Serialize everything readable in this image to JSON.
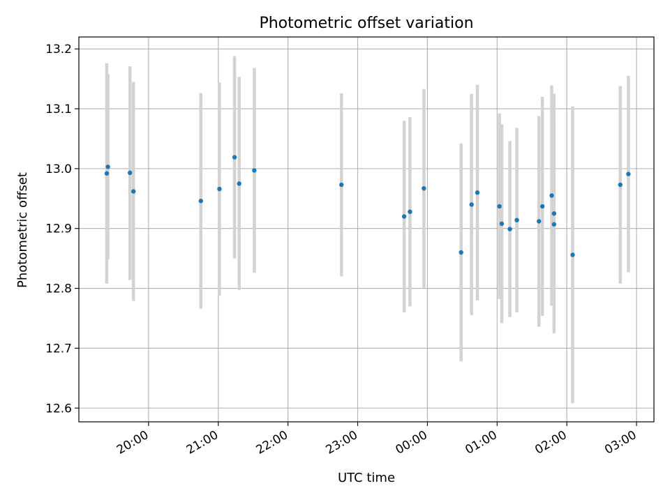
{
  "chart_data": {
    "type": "scatter",
    "title": "Photometric offset variation",
    "xlabel": "UTC time",
    "ylabel": "Photometric offset",
    "grid": true,
    "legend": "none",
    "colors": {
      "points": "#1f77b4",
      "errorbars": "#d3d3d3",
      "grid": "#b0b0b0"
    },
    "xlim": [
      "2000-01-01T19:00",
      "2000-01-02T03:15"
    ],
    "ylim": [
      12.577,
      13.22
    ],
    "x_ticks": [
      {
        "t": "2000-01-01T20:00",
        "label": "20:00"
      },
      {
        "t": "2000-01-01T21:00",
        "label": "21:00"
      },
      {
        "t": "2000-01-01T22:00",
        "label": "22:00"
      },
      {
        "t": "2000-01-01T23:00",
        "label": "23:00"
      },
      {
        "t": "2000-01-02T00:00",
        "label": "00:00"
      },
      {
        "t": "2000-01-02T01:00",
        "label": "01:00"
      },
      {
        "t": "2000-01-02T02:00",
        "label": "02:00"
      },
      {
        "t": "2000-01-02T03:00",
        "label": "03:00"
      }
    ],
    "y_ticks": [
      12.6,
      12.7,
      12.8,
      12.9,
      13.0,
      13.1,
      13.2
    ],
    "y_tick_labels": [
      "12.6",
      "12.7",
      "12.8",
      "12.9",
      "13.0",
      "13.1",
      "13.2"
    ],
    "points": [
      {
        "t": "2000-01-01T19:24",
        "y": 12.992,
        "lo": 12.808,
        "hi": 13.176
      },
      {
        "t": "2000-01-01T19:25",
        "y": 13.003,
        "lo": 12.848,
        "hi": 13.158
      },
      {
        "t": "2000-01-01T19:44",
        "y": 12.993,
        "lo": 12.814,
        "hi": 13.171
      },
      {
        "t": "2000-01-01T19:47",
        "y": 12.962,
        "lo": 12.779,
        "hi": 13.145
      },
      {
        "t": "2000-01-01T20:45",
        "y": 12.946,
        "lo": 12.766,
        "hi": 13.126
      },
      {
        "t": "2000-01-01T21:01",
        "y": 12.966,
        "lo": 12.788,
        "hi": 13.144
      },
      {
        "t": "2000-01-01T21:14",
        "y": 13.019,
        "lo": 12.85,
        "hi": 13.188
      },
      {
        "t": "2000-01-01T21:18",
        "y": 12.975,
        "lo": 12.797,
        "hi": 13.153
      },
      {
        "t": "2000-01-01T21:31",
        "y": 12.997,
        "lo": 12.826,
        "hi": 13.168
      },
      {
        "t": "2000-01-01T22:46",
        "y": 12.973,
        "lo": 12.82,
        "hi": 13.126
      },
      {
        "t": "2000-01-01T23:40",
        "y": 12.92,
        "lo": 12.76,
        "hi": 13.08
      },
      {
        "t": "2000-01-01T23:45",
        "y": 12.928,
        "lo": 12.77,
        "hi": 13.086
      },
      {
        "t": "2000-01-01T23:57",
        "y": 12.967,
        "lo": 12.801,
        "hi": 13.133
      },
      {
        "t": "2000-01-02T00:29",
        "y": 12.86,
        "lo": 12.678,
        "hi": 13.042
      },
      {
        "t": "2000-01-02T00:38",
        "y": 12.94,
        "lo": 12.755,
        "hi": 13.125
      },
      {
        "t": "2000-01-02T00:43",
        "y": 12.96,
        "lo": 12.78,
        "hi": 13.14
      },
      {
        "t": "2000-01-02T01:02",
        "y": 12.937,
        "lo": 12.782,
        "hi": 13.092
      },
      {
        "t": "2000-01-02T01:04",
        "y": 12.908,
        "lo": 12.742,
        "hi": 13.074
      },
      {
        "t": "2000-01-02T01:11",
        "y": 12.899,
        "lo": 12.752,
        "hi": 13.046
      },
      {
        "t": "2000-01-02T01:17",
        "y": 12.914,
        "lo": 12.76,
        "hi": 13.068
      },
      {
        "t": "2000-01-02T01:36",
        "y": 12.912,
        "lo": 12.736,
        "hi": 13.088
      },
      {
        "t": "2000-01-02T01:39",
        "y": 12.937,
        "lo": 12.754,
        "hi": 13.12
      },
      {
        "t": "2000-01-02T01:47",
        "y": 12.955,
        "lo": 12.771,
        "hi": 13.139
      },
      {
        "t": "2000-01-02T01:49",
        "y": 12.925,
        "lo": 12.725,
        "hi": 13.125
      },
      {
        "t": "2000-01-02T01:49",
        "y": 12.907,
        "lo": 12.741,
        "hi": 13.073
      },
      {
        "t": "2000-01-02T02:05",
        "y": 12.856,
        "lo": 12.608,
        "hi": 13.104
      },
      {
        "t": "2000-01-02T02:46",
        "y": 12.973,
        "lo": 12.808,
        "hi": 13.138
      },
      {
        "t": "2000-01-02T02:53",
        "y": 12.991,
        "lo": 12.827,
        "hi": 13.155
      }
    ]
  }
}
